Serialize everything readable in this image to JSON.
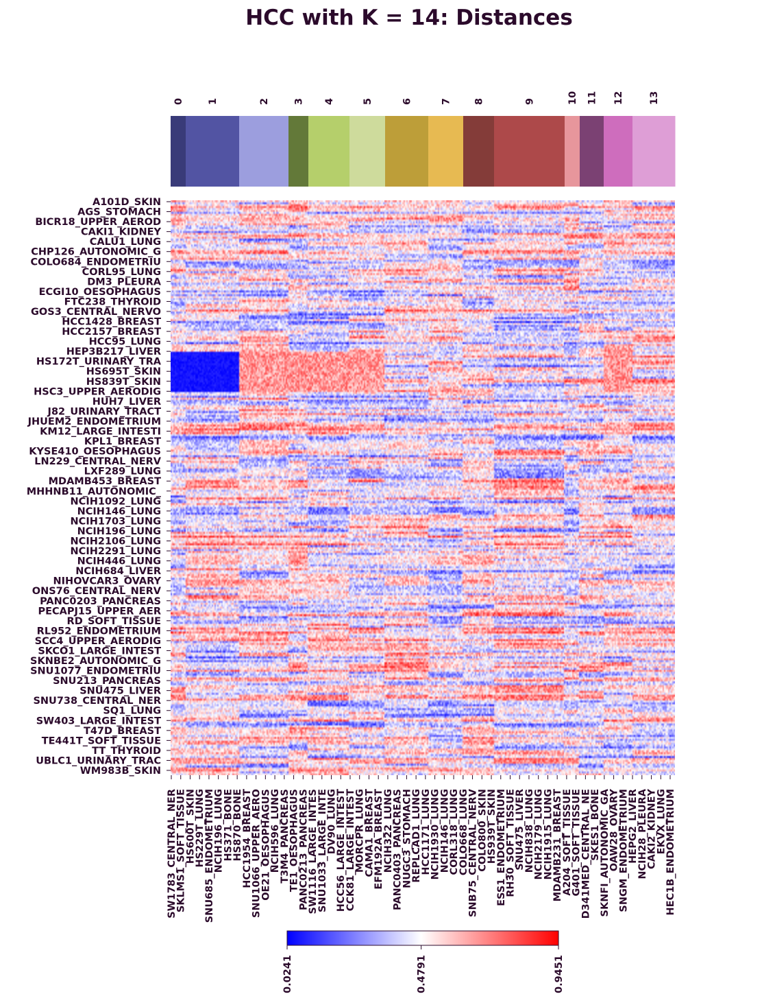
{
  "chart_data": {
    "type": "heatmap",
    "title": "HCC with K = 14: Distances",
    "cluster_labels": [
      "0",
      "1",
      "2",
      "3",
      "4",
      "5",
      "6",
      "7",
      "8",
      "9",
      "10",
      "11",
      "12",
      "13"
    ],
    "cluster_colors": [
      "#393b79",
      "#5254a3",
      "#9c9ede",
      "#637939",
      "#b5cf6b",
      "#cedb9c",
      "#bd9e39",
      "#e7ba52",
      "#843c39",
      "#ad494a",
      "#e7969c",
      "#7b4173",
      "#ce6dbd",
      "#de9ed6"
    ],
    "cluster_widths": [
      22,
      78,
      72,
      29,
      60,
      52,
      63,
      51,
      45,
      103,
      22,
      35,
      42,
      62
    ],
    "row_labels": [
      "A101D_SKIN",
      "AGS_STOMACH",
      "BICR18_UPPER_AEROD",
      "CAKI1_KIDNEY",
      "CALU1_LUNG",
      "CHP126_AUTONOMIC_G",
      "COLO684_ENDOMETRIU",
      "CORL95_LUNG",
      "DM3_PLEURA",
      "ECGI10_OESOPHAGUS",
      "FTC238_THYROID",
      "GOS3_CENTRAL_NERVO",
      "HCC1428_BREAST",
      "HCC2157_BREAST",
      "HCC95_LUNG",
      "HEP3B217_LIVER",
      "HS172T_URINARY_TRA",
      "HS695T_SKIN",
      "HS839T_SKIN",
      "HSC3_UPPER_AERODIG",
      "HUH7_LIVER",
      "J82_URINARY_TRACT",
      "JHUEM2_ENDOMETRIUM",
      "KM12_LARGE_INTESTI",
      "KPL1_BREAST",
      "KYSE410_OESOPHAGUS",
      "LN229_CENTRAL_NERV",
      "LXF289_LUNG",
      "MDAMB453_BREAST",
      "MHHNB11_AUTONOMIC_",
      "NCIH1092_LUNG",
      "NCIH146_LUNG",
      "NCIH1703_LUNG",
      "NCIH196_LUNG",
      "NCIH2106_LUNG",
      "NCIH2291_LUNG",
      "NCIH446_LUNG",
      "NCIH684_LIVER",
      "NIHOVCAR3_OVARY",
      "ONS76_CENTRAL_NERV",
      "PANC0203_PANCREAS",
      "PECAPJ15_UPPER_AER",
      "RD_SOFT_TISSUE",
      "RL952_ENDOMETRIUM",
      "SCC4_UPPER_AERODIG",
      "SKCO1_LARGE_INTEST",
      "SKNBE2_AUTONOMIC_G",
      "SNU1077_ENDOMETRIU",
      "SNU213_PANCREAS",
      "SNU475_LIVER",
      "SNU738_CENTRAL_NER",
      "SQ1_LUNG",
      "SW403_LARGE_INTEST",
      "T47D_BREAST",
      "TE441T_SOFT_TISSUE",
      "TT_THYROID",
      "UBLC1_URINARY_TRAC",
      "WM983B_SKIN"
    ],
    "col_labels": [
      "SW1783_CENTRAL_NER",
      "SKLMS1_SOFT_TISSUE",
      "HS600T_SKIN",
      "HS229T_LUNG",
      "SNU685_ENDOMETRIUM",
      "NCIH196_LUNG",
      "HS371_BONE",
      "HS870_BONE",
      "HCC1954_BREAST",
      "SNU1066_UPPER_AERO",
      "OE21_OESOPHAGUS",
      "NCIH596_LUNG",
      "T3M4_PANCREAS",
      "TE1_OESOPHAGUS",
      "PANC0213_PANCREAS",
      "SW1116_LARGE_INTES",
      "SNU1033_LARGE_INTE",
      "DV90_LUNG",
      "HCC56_LARGE_INTEST",
      "CCK81_LARGE_INTEST",
      "MORCPR_LUNG",
      "CAMA1_BREAST",
      "EFM192A_BREAST",
      "NCIH322_LUNG",
      "PANC0403_PANCREAS",
      "NUGC3_STOMACH",
      "REPLCAD1_LUNG",
      "HCC1171_LUNG",
      "NCIH1930_LUNG",
      "NCIH146_LUNG",
      "CORL318_LUNG",
      "COLO668_LUNG",
      "SNB75_CENTRAL_NERV",
      "COLO800_SKIN",
      "HS939T_SKIN",
      "ESS1_ENDOMETRIUM",
      "RH30_SOFT_TISSUE",
      "SNU475_LIVER",
      "NCIH838_LUNG",
      "NCIH2179_LUNG",
      "NCIH1915_LUNG",
      "MDAMB231_BREAST",
      "A204_SOFT_TISSUE",
      "G401_SOFT_TISSUE",
      "D341MED_CENTRAL_NE",
      "SKES1_BONE",
      "SKNFI_AUTONOMIC_GA",
      "OAW28_OVARY",
      "SNGM_ENDOMETRIUM",
      "HEPG2_LIVER",
      "NCIH28_PLEURA",
      "CAKI2_KIDNEY",
      "EKVX_LUNG",
      "HEC1B_ENDOMETRIUM"
    ],
    "colorbar": {
      "min": 0.0241,
      "mid": 0.4791,
      "max": 0.9451,
      "tick_labels": [
        "0.0241",
        "0.4791",
        "0.9451"
      ],
      "colors": [
        "#0000ff",
        "#ffffff",
        "#ff0000"
      ]
    },
    "grid": false
  }
}
